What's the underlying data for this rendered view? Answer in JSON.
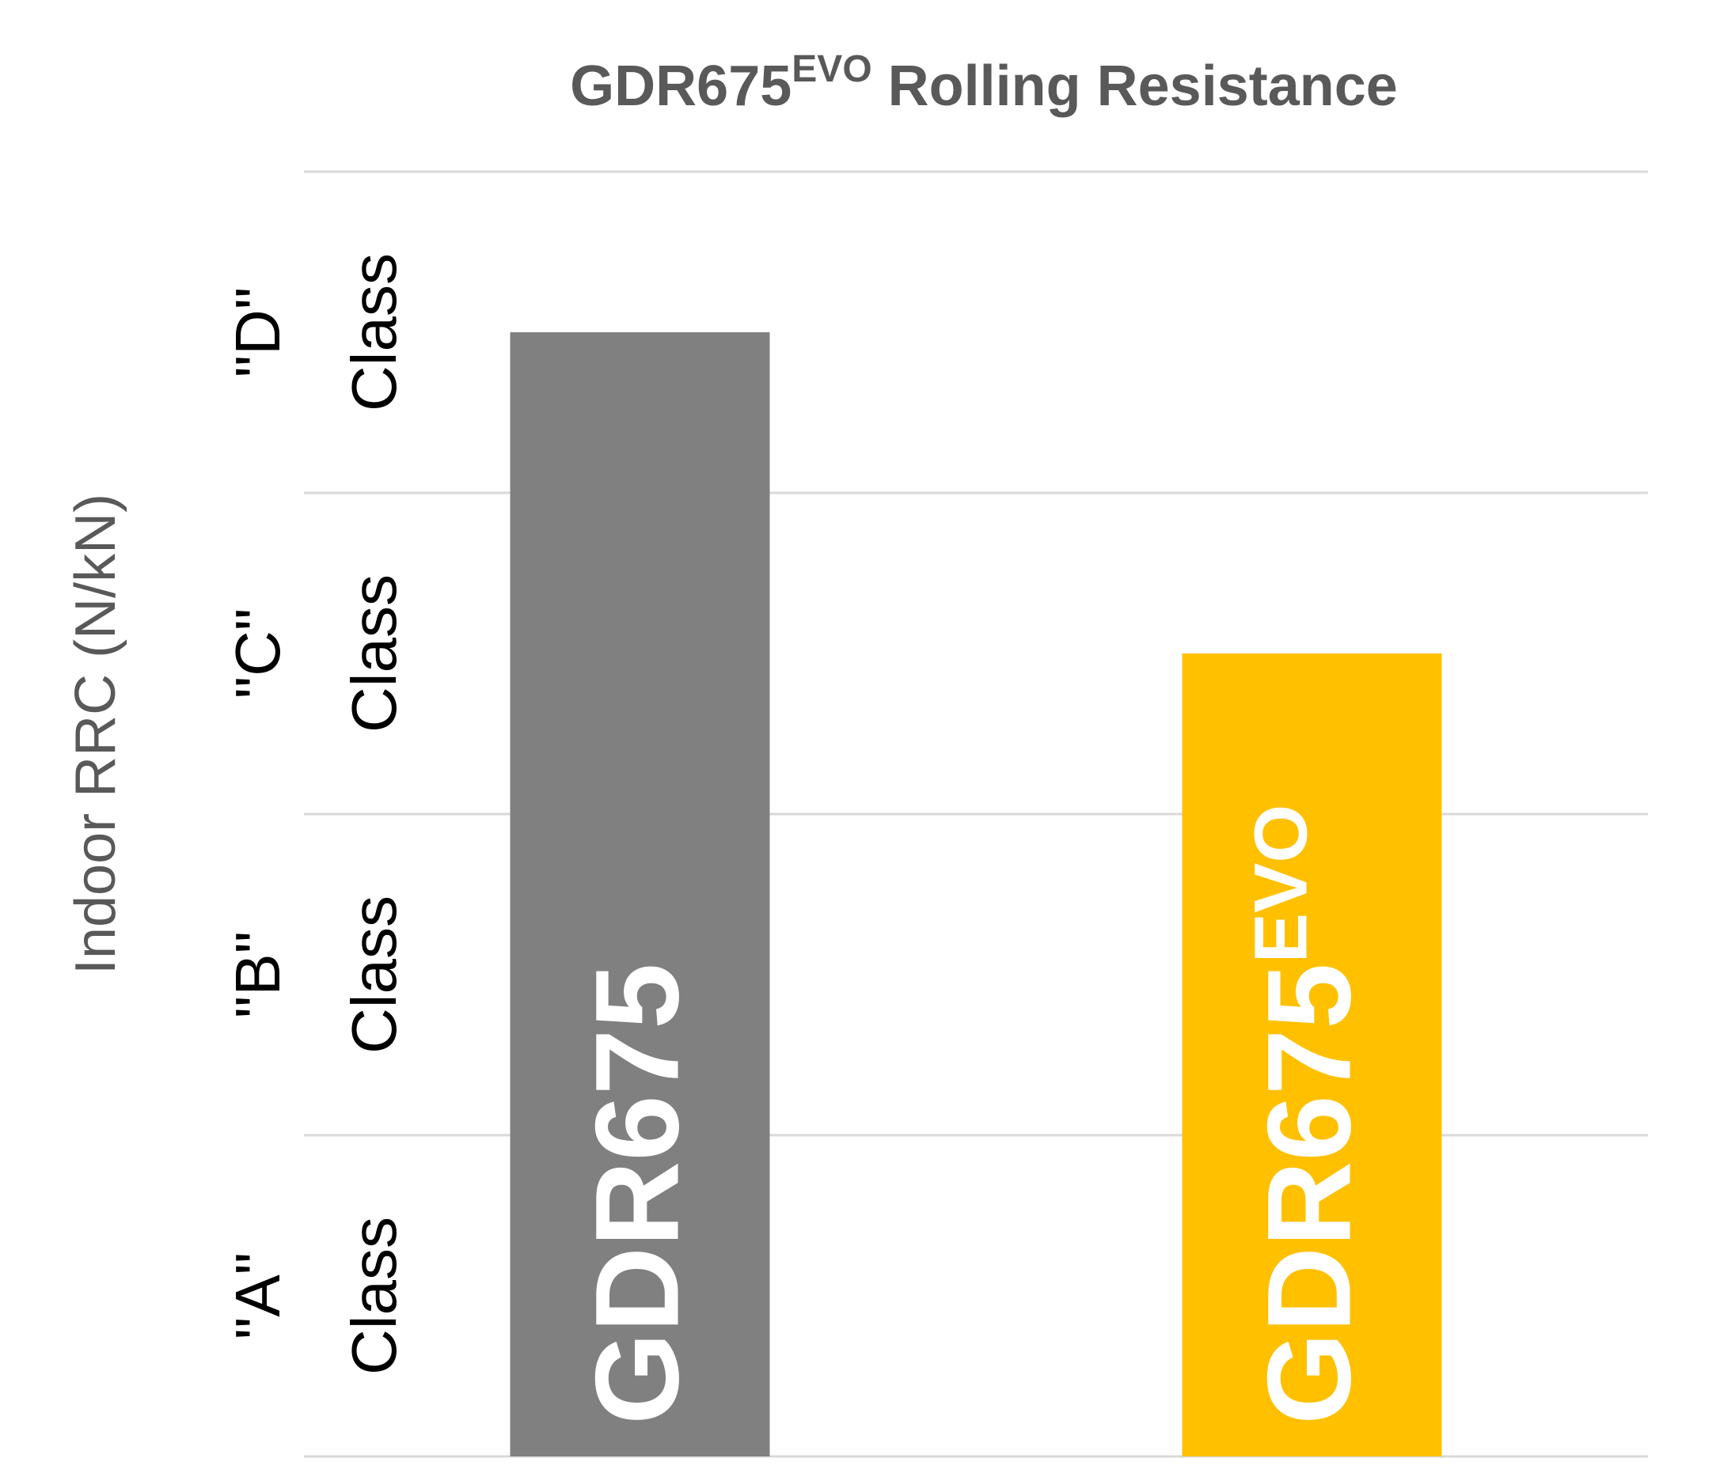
{
  "chart_data": {
    "type": "bar",
    "title": "GDR675",
    "title_superscript": "EVO",
    "title_rest": " Rolling Resistance",
    "ylabel": "Indoor RRC (N/kN)",
    "ylim": [
      0,
      4
    ],
    "grid": true,
    "y_category_labels": [
      {
        "line1": "\"A\"",
        "line2": "Class"
      },
      {
        "line1": "\"B\"",
        "line2": "Class"
      },
      {
        "line1": "\"C\"",
        "line2": "Class"
      },
      {
        "line1": "\"D\"",
        "line2": "Class"
      }
    ],
    "bars": [
      {
        "label": "GDR675",
        "superscript": "",
        "value": 3.5,
        "color": "#808080"
      },
      {
        "label": "GDR675",
        "superscript": "EVO",
        "value": 2.5,
        "color": "#FFC000"
      }
    ]
  }
}
